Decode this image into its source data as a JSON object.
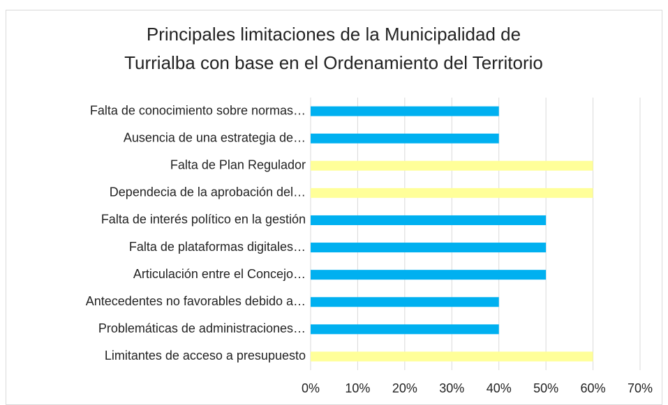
{
  "chart_data": {
    "type": "barh",
    "title": [
      "Principales limitaciones de la Municipalidad de",
      "Turrialba con base en el Ordenamiento del Territorio"
    ],
    "categories": [
      "Falta de conocimiento sobre normas…",
      "Ausencia de una estrategia de…",
      "Falta de Plan Regulador",
      "Dependecia de la aprobación del…",
      "Falta de interés político en la gestión",
      "Falta de plataformas digitales…",
      "Articulación entre el Concejo…",
      "Antecedentes no favorables debido a…",
      "Problemáticas de administraciones…",
      "Limitantes de acceso a presupuesto"
    ],
    "values": [
      40,
      40,
      60,
      60,
      50,
      50,
      50,
      40,
      40,
      60
    ],
    "colors": [
      "#00b0f0",
      "#00b0f0",
      "#ffff99",
      "#ffff99",
      "#00b0f0",
      "#00b0f0",
      "#00b0f0",
      "#00b0f0",
      "#00b0f0",
      "#ffff99"
    ],
    "xlim": [
      0,
      70
    ],
    "xticks": [
      {
        "value": 0,
        "label": "0%"
      },
      {
        "value": 10,
        "label": "10%"
      },
      {
        "value": 20,
        "label": "20%"
      },
      {
        "value": 30,
        "label": "30%"
      },
      {
        "value": 40,
        "label": "40%"
      },
      {
        "value": 50,
        "label": "50%"
      },
      {
        "value": 60,
        "label": "60%"
      },
      {
        "value": 70,
        "label": "70%"
      }
    ],
    "grid": true
  }
}
